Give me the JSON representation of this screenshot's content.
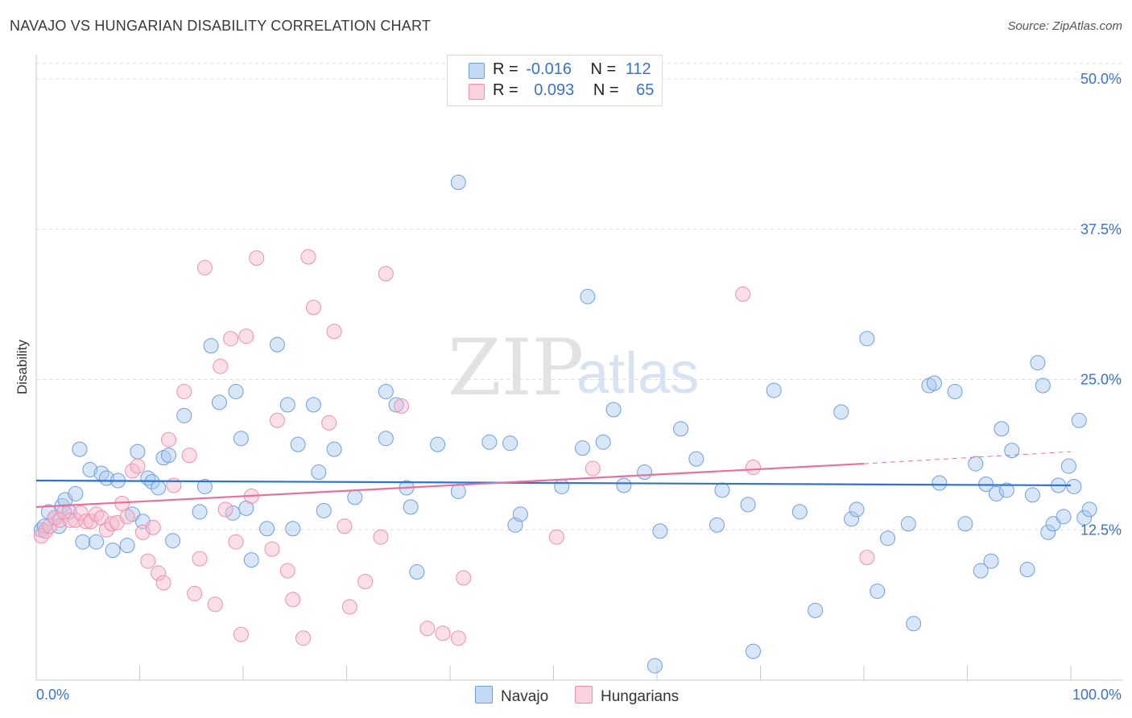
{
  "title": "NAVAJO VS HUNGARIAN DISABILITY CORRELATION CHART",
  "source": "Source: ZipAtlas.com",
  "watermark": {
    "zip": "ZIP",
    "atlas": "atlas"
  },
  "colors": {
    "navajo": "#a9c8ef",
    "navajo_stroke": "#6d9fe0",
    "navajo_line": "#2f72d6",
    "hungarians": "#f6b8cb",
    "hungarians_stroke": "#ee8fae",
    "hungarians_line": "#e8709a",
    "tick_label": "#3b73c7"
  },
  "legend": {
    "rows": [
      {
        "r_label": "R =",
        "r_value": "-0.016",
        "n_label": "N =",
        "n_value": "112"
      },
      {
        "r_label": "R =",
        "r_value": "0.093",
        "n_label": "N =",
        "n_value": "65"
      }
    ]
  },
  "bottom_legend": {
    "navajo": "Navajo",
    "hungarians": "Hungarians"
  },
  "chart_data": {
    "type": "scatter",
    "ylabel": "Disability",
    "xlabel": "",
    "xlim": [
      0,
      100
    ],
    "ylim": [
      0,
      50
    ],
    "x_tick_labels": [
      "0.0%",
      "100.0%"
    ],
    "y_ticks": [
      12.5,
      25.0,
      37.5,
      50.0
    ],
    "y_tick_labels": [
      "12.5%",
      "25.0%",
      "37.5%",
      "50.0%"
    ],
    "grid": true,
    "series": [
      {
        "name": "Navajo",
        "trend": {
          "x": [
            0,
            100
          ],
          "y": [
            16.6,
            16.2
          ]
        },
        "points": [
          [
            0.5,
            12.5
          ],
          [
            0.8,
            12.8
          ],
          [
            1.2,
            14
          ],
          [
            1.8,
            13.5
          ],
          [
            2.2,
            12.8
          ],
          [
            2.5,
            14.5
          ],
          [
            2.8,
            15
          ],
          [
            3.2,
            14
          ],
          [
            3.8,
            15.5
          ],
          [
            4.2,
            19.2
          ],
          [
            4.5,
            11.5
          ],
          [
            5.2,
            17.5
          ],
          [
            5.8,
            11.5
          ],
          [
            6.3,
            17.2
          ],
          [
            6.8,
            16.8
          ],
          [
            7.4,
            10.8
          ],
          [
            7.9,
            16.6
          ],
          [
            8.8,
            11.2
          ],
          [
            9.3,
            13.8
          ],
          [
            9.8,
            19
          ],
          [
            10.3,
            13.2
          ],
          [
            10.8,
            16.8
          ],
          [
            11.2,
            16.5
          ],
          [
            11.8,
            16
          ],
          [
            12.3,
            18.5
          ],
          [
            12.8,
            18.7
          ],
          [
            13.2,
            11.6
          ],
          [
            14.3,
            22
          ],
          [
            15.8,
            14
          ],
          [
            16.3,
            16.1
          ],
          [
            16.9,
            27.8
          ],
          [
            17.7,
            23.1
          ],
          [
            19,
            13.9
          ],
          [
            19.3,
            24
          ],
          [
            19.8,
            20.1
          ],
          [
            20.3,
            14.3
          ],
          [
            20.8,
            10
          ],
          [
            22.3,
            12.6
          ],
          [
            23.3,
            27.9
          ],
          [
            24.3,
            22.9
          ],
          [
            24.8,
            12.6
          ],
          [
            25.3,
            19.6
          ],
          [
            26.8,
            22.9
          ],
          [
            27.3,
            17.3
          ],
          [
            27.8,
            14.1
          ],
          [
            28.8,
            19.2
          ],
          [
            30.8,
            15.2
          ],
          [
            33.8,
            24
          ],
          [
            33.8,
            20.1
          ],
          [
            34.8,
            22.9
          ],
          [
            35.8,
            16
          ],
          [
            36.2,
            14.4
          ],
          [
            36.8,
            9
          ],
          [
            38.8,
            19.6
          ],
          [
            40.8,
            41.4
          ],
          [
            40.8,
            15.7
          ],
          [
            43.8,
            19.8
          ],
          [
            45.8,
            19.7
          ],
          [
            46.3,
            12.9
          ],
          [
            46.8,
            13.8
          ],
          [
            50.8,
            16.1
          ],
          [
            52.8,
            19.3
          ],
          [
            53.3,
            31.9
          ],
          [
            54.8,
            19.8
          ],
          [
            55.8,
            22.5
          ],
          [
            56.8,
            16.2
          ],
          [
            58.8,
            17.3
          ],
          [
            59.8,
            1.2
          ],
          [
            60.3,
            12.4
          ],
          [
            62.3,
            20.9
          ],
          [
            63.8,
            18.4
          ],
          [
            65.8,
            12.9
          ],
          [
            66.3,
            15.8
          ],
          [
            68.8,
            14.6
          ],
          [
            69.3,
            2.4
          ],
          [
            71.3,
            24.1
          ],
          [
            73.8,
            14
          ],
          [
            75.3,
            5.8
          ],
          [
            77.8,
            22.3
          ],
          [
            78.8,
            13.4
          ],
          [
            79.3,
            14.2
          ],
          [
            80.3,
            28.4
          ],
          [
            81.3,
            7.4
          ],
          [
            82.3,
            11.8
          ],
          [
            84.3,
            13
          ],
          [
            84.8,
            4.7
          ],
          [
            86.3,
            24.5
          ],
          [
            86.8,
            24.7
          ],
          [
            87.3,
            16.4
          ],
          [
            88.8,
            24
          ],
          [
            89.8,
            13
          ],
          [
            90.8,
            18
          ],
          [
            91.3,
            9.1
          ],
          [
            91.8,
            16.3
          ],
          [
            92.3,
            9.9
          ],
          [
            92.8,
            15.5
          ],
          [
            93.3,
            20.9
          ],
          [
            93.8,
            15.8
          ],
          [
            94.3,
            19.1
          ],
          [
            95.8,
            9.2
          ],
          [
            96.3,
            15.4
          ],
          [
            96.8,
            26.4
          ],
          [
            97.3,
            24.5
          ],
          [
            97.8,
            12.3
          ],
          [
            98.3,
            13
          ],
          [
            99.3,
            13.6
          ],
          [
            99.8,
            17.8
          ],
          [
            100.3,
            16.1
          ],
          [
            100.8,
            21.6
          ],
          [
            101.3,
            13.5
          ],
          [
            101.8,
            14.2
          ],
          [
            98.8,
            16.2
          ]
        ]
      },
      {
        "name": "Hungarians",
        "trend": {
          "x": [
            0,
            80
          ],
          "y": [
            14.4,
            18.0
          ]
        },
        "trend_extension": {
          "x": [
            80,
            100
          ],
          "y": [
            18.0,
            19.0
          ]
        },
        "points": [
          [
            0.5,
            12
          ],
          [
            0.9,
            12.4
          ],
          [
            1.3,
            12.8
          ],
          [
            1.8,
            13.5
          ],
          [
            2.3,
            13.3
          ],
          [
            2.7,
            14
          ],
          [
            3.3,
            13.3
          ],
          [
            3.8,
            13.3
          ],
          [
            4.3,
            13.9
          ],
          [
            4.8,
            13.2
          ],
          [
            5.3,
            13.2
          ],
          [
            5.8,
            13.8
          ],
          [
            6.3,
            13.5
          ],
          [
            6.8,
            12.5
          ],
          [
            7.3,
            13
          ],
          [
            7.8,
            13.1
          ],
          [
            8.3,
            14.7
          ],
          [
            8.8,
            13.6
          ],
          [
            9.3,
            17.4
          ],
          [
            9.8,
            17.8
          ],
          [
            10.3,
            12.3
          ],
          [
            10.8,
            9.9
          ],
          [
            11.3,
            12.7
          ],
          [
            11.8,
            8.9
          ],
          [
            12.3,
            8.1
          ],
          [
            12.8,
            20
          ],
          [
            13.3,
            16.2
          ],
          [
            14.3,
            24
          ],
          [
            14.8,
            18.7
          ],
          [
            15.3,
            7.2
          ],
          [
            15.8,
            10.1
          ],
          [
            16.3,
            34.3
          ],
          [
            17.3,
            6.3
          ],
          [
            17.8,
            26.1
          ],
          [
            18.3,
            14.2
          ],
          [
            18.8,
            28.4
          ],
          [
            19.3,
            11.5
          ],
          [
            19.8,
            3.8
          ],
          [
            20.3,
            28.6
          ],
          [
            20.8,
            15.3
          ],
          [
            21.3,
            35.1
          ],
          [
            22.8,
            10.9
          ],
          [
            23.3,
            21.6
          ],
          [
            24.3,
            9.1
          ],
          [
            24.8,
            6.7
          ],
          [
            25.8,
            3.5
          ],
          [
            26.3,
            35.2
          ],
          [
            26.8,
            31
          ],
          [
            28.3,
            21.4
          ],
          [
            28.8,
            29
          ],
          [
            29.8,
            12.8
          ],
          [
            30.3,
            6.1
          ],
          [
            31.8,
            8.2
          ],
          [
            33.3,
            11.9
          ],
          [
            33.8,
            33.8
          ],
          [
            35.3,
            22.8
          ],
          [
            37.8,
            4.3
          ],
          [
            39.3,
            3.9
          ],
          [
            40.8,
            3.5
          ],
          [
            41.3,
            8.5
          ],
          [
            50.3,
            11.9
          ],
          [
            53.8,
            17.6
          ],
          [
            68.3,
            32.1
          ],
          [
            69.3,
            17.7
          ],
          [
            80.3,
            10.2
          ]
        ]
      }
    ]
  }
}
